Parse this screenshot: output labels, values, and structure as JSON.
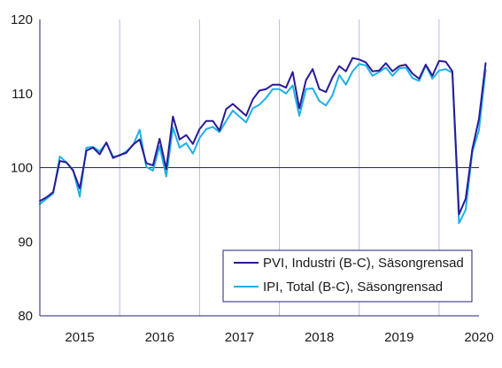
{
  "chart_data": {
    "type": "line",
    "title": "",
    "xlabel": "",
    "ylabel": "",
    "ylim": [
      80,
      120
    ],
    "yticks": [
      80,
      90,
      100,
      110,
      120
    ],
    "xlim": [
      2015.0,
      2020.5
    ],
    "year_labels": [
      "2015",
      "2016",
      "2017",
      "2018",
      "2019",
      "2020"
    ],
    "grid": "vertical lines at year boundaries",
    "reference_line": 100,
    "legend_placement": "bottom-right",
    "colors": {
      "pvi": "#2a1a96",
      "ipi": "#1fb0e6",
      "grid": "#aebfe8",
      "axis": "#22227a",
      "reference": "#22227a",
      "legend_border": "#22227a"
    },
    "series": [
      {
        "name": "PVI, Industri (B-C), Säsongrensad",
        "key": "pvi",
        "start": "2015-01",
        "values": [
          95.5,
          96.0,
          96.7,
          100.9,
          100.7,
          99.6,
          97.2,
          102.3,
          102.7,
          101.8,
          103.4,
          101.3,
          101.7,
          102.0,
          103.1,
          103.8,
          100.6,
          100.3,
          103.9,
          99.8,
          106.9,
          103.8,
          104.4,
          103.2,
          105.2,
          106.3,
          106.3,
          105.0,
          107.9,
          108.6,
          107.8,
          107.0,
          109.2,
          110.4,
          110.6,
          111.2,
          111.2,
          110.8,
          112.9,
          108.0,
          111.8,
          113.3,
          110.6,
          110.2,
          112.2,
          113.7,
          113.0,
          114.8,
          114.6,
          114.2,
          113.0,
          113.1,
          114.1,
          113.0,
          113.7,
          113.9,
          112.7,
          112.0,
          113.9,
          112.4,
          114.4,
          114.3,
          113.0,
          93.7,
          95.8,
          102.5,
          106.6,
          114.1
        ]
      },
      {
        "name": "IPI, Total (B-C), Säsongrensad",
        "key": "ipi",
        "start": "2015-01",
        "values": [
          95.1,
          95.8,
          96.5,
          101.5,
          100.7,
          99.7,
          96.1,
          102.7,
          102.8,
          102.2,
          103.3,
          101.5,
          101.6,
          102.2,
          103.0,
          105.1,
          100.1,
          99.6,
          102.9,
          98.8,
          105.4,
          102.7,
          103.3,
          101.9,
          104.0,
          105.2,
          105.5,
          104.8,
          106.3,
          107.7,
          106.9,
          106.1,
          108.0,
          108.5,
          109.4,
          110.6,
          110.6,
          110.0,
          111.1,
          107.0,
          110.6,
          110.7,
          109.0,
          108.4,
          109.8,
          112.5,
          111.2,
          113.0,
          114.0,
          113.8,
          112.4,
          112.9,
          113.5,
          112.4,
          113.4,
          113.5,
          112.1,
          111.7,
          113.8,
          112.0,
          113.1,
          113.3,
          112.8,
          92.5,
          94.3,
          102.1,
          105.1,
          113.2
        ]
      }
    ]
  }
}
